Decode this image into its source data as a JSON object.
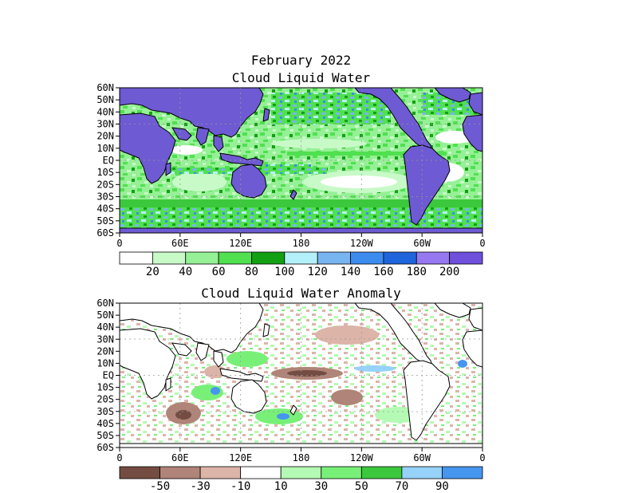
{
  "titles": {
    "main": "February 2022",
    "map1": "Cloud Liquid Water",
    "map2": "Cloud Liquid Water Anomaly"
  },
  "lat_labels": [
    "60N",
    "50N",
    "40N",
    "30N",
    "20N",
    "10N",
    "EQ",
    "10S",
    "20S",
    "30S",
    "40S",
    "50S",
    "60S"
  ],
  "lon_labels": [
    "0",
    "60E",
    "120E",
    "180",
    "120W",
    "60W",
    "0"
  ],
  "colorbar1": {
    "colors": [
      "#ffffff",
      "#c8fac8",
      "#96f096",
      "#50e050",
      "#14a014",
      "#b4f0fa",
      "#78b4f0",
      "#3c8cf0",
      "#1e64dc",
      "#9678f0",
      "#6e50dc"
    ],
    "labels": [
      "20",
      "40",
      "60",
      "80",
      "100",
      "120",
      "140",
      "160",
      "180",
      "200"
    ]
  },
  "colorbar2": {
    "colors": [
      "#744c42",
      "#b08478",
      "#dcb4a8",
      "#ffffff",
      "#b4fab4",
      "#78f078",
      "#3cc83c",
      "#96d2fa",
      "#4696f0"
    ],
    "labels": [
      "-50",
      "-30",
      "-10",
      "10",
      "30",
      "50",
      "70",
      "90"
    ]
  },
  "colors": {
    "land": "#6e5ad2",
    "coast": "#000000"
  }
}
